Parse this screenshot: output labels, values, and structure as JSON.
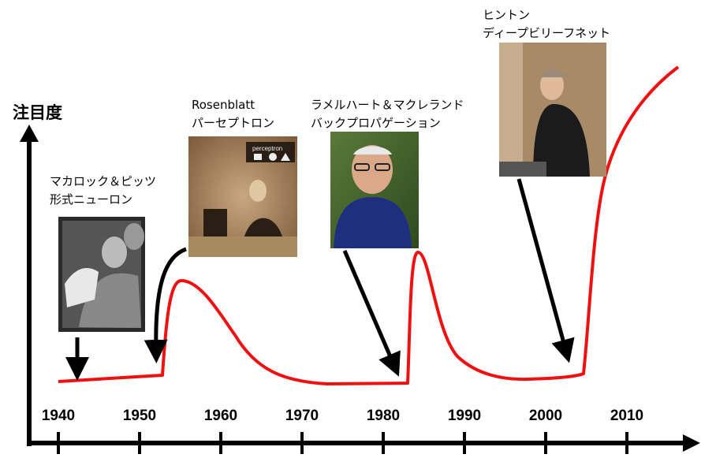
{
  "axis": {
    "y_label": "注目度",
    "years": [
      "1940",
      "1950",
      "1960",
      "1970",
      "1980",
      "1990",
      "2000",
      "2010"
    ]
  },
  "milestones": [
    {
      "line1": "マカロック＆ピッツ",
      "line2": "形式ニューロン",
      "photo_icon": "two-scientists-photo"
    },
    {
      "line1": "Rosenblatt",
      "line2": "パーセプトロン",
      "photo_sign": "perceptron",
      "photo_icon": "researcher-with-machine-photo"
    },
    {
      "line1": "ラメルハート＆マクレランド",
      "line2": "バックプロパゲーション",
      "photo_icon": "smiling-man-glasses-photo"
    },
    {
      "line1": "ヒントン",
      "line2": "ディープビリーフネット",
      "photo_icon": "lecturer-photo"
    }
  ],
  "colors": {
    "curve": "#ee1111",
    "axis": "#000000",
    "arrow": "#000000"
  }
}
